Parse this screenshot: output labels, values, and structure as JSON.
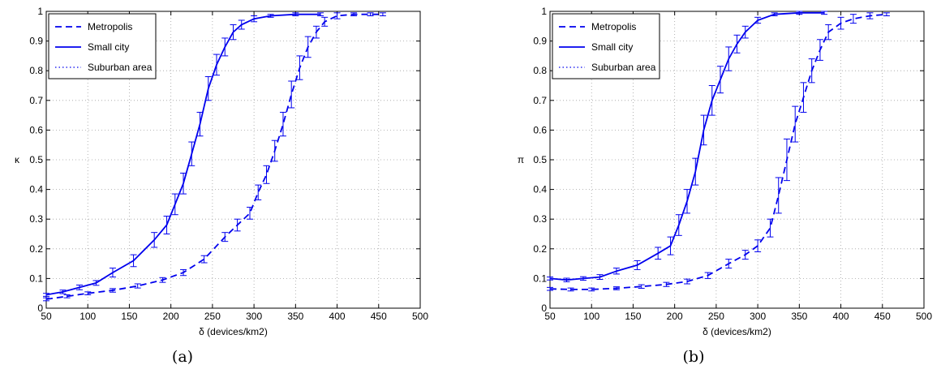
{
  "chart_data": [
    {
      "type": "line",
      "panel": "(a)",
      "xlabel": "δ (devices/km2)",
      "ylabel": "κ",
      "xlim": [
        50,
        500
      ],
      "ylim": [
        0,
        1
      ],
      "xticks": [
        50,
        100,
        150,
        200,
        250,
        300,
        350,
        400,
        450,
        500
      ],
      "yticks": [
        0,
        0.1,
        0.2,
        0.3,
        0.4,
        0.5,
        0.6,
        0.7,
        0.8,
        0.9,
        1
      ],
      "ytick_labels": [
        "0",
        "0.1",
        "0.2",
        "0.3",
        "0.4",
        "0.5",
        "0.6",
        "0.7",
        "0.8",
        "0.9",
        "1"
      ],
      "grid": true,
      "legend_position": "top-left",
      "series": [
        {
          "name": "Metropolis",
          "style": "dashed",
          "color": "#0000ee",
          "x": [
            50,
            75,
            100,
            130,
            160,
            190,
            215,
            240,
            265,
            280,
            295,
            305,
            315,
            325,
            335,
            345,
            355,
            365,
            375,
            385,
            400,
            420,
            440,
            455
          ],
          "y": [
            0.03,
            0.04,
            0.05,
            0.06,
            0.075,
            0.095,
            0.12,
            0.165,
            0.24,
            0.28,
            0.32,
            0.39,
            0.45,
            0.53,
            0.62,
            0.72,
            0.81,
            0.88,
            0.93,
            0.965,
            0.985,
            0.99,
            0.99,
            0.99
          ],
          "err": [
            0.005,
            0.005,
            0.005,
            0.006,
            0.007,
            0.008,
            0.01,
            0.012,
            0.015,
            0.02,
            0.02,
            0.025,
            0.03,
            0.035,
            0.04,
            0.045,
            0.04,
            0.035,
            0.02,
            0.015,
            0.01,
            0.005,
            0.005,
            0.005
          ]
        },
        {
          "name": "Small city",
          "style": "solid",
          "color": "#0000ee",
          "x": [
            50,
            70,
            90,
            110,
            130,
            155,
            180,
            195,
            205,
            215,
            225,
            235,
            245,
            255,
            265,
            275,
            285,
            300,
            320,
            350,
            380
          ],
          "y": [
            0.045,
            0.055,
            0.07,
            0.085,
            0.12,
            0.16,
            0.23,
            0.28,
            0.35,
            0.42,
            0.52,
            0.62,
            0.74,
            0.82,
            0.88,
            0.93,
            0.955,
            0.975,
            0.985,
            0.99,
            0.99
          ],
          "err": [
            0.005,
            0.006,
            0.008,
            0.008,
            0.015,
            0.02,
            0.025,
            0.03,
            0.035,
            0.035,
            0.04,
            0.04,
            0.04,
            0.035,
            0.03,
            0.025,
            0.015,
            0.01,
            0.005,
            0.005,
            0.005
          ]
        },
        {
          "name": "Suburban area",
          "style": "dotted",
          "color": "#0000ee",
          "x": [
            50,
            70,
            90,
            110,
            130,
            155,
            180,
            195,
            205,
            215,
            225,
            235,
            245,
            255,
            265,
            275,
            285,
            300,
            320,
            350,
            380
          ],
          "y": [
            0.045,
            0.055,
            0.07,
            0.085,
            0.12,
            0.16,
            0.23,
            0.28,
            0.35,
            0.42,
            0.52,
            0.62,
            0.74,
            0.82,
            0.88,
            0.93,
            0.955,
            0.975,
            0.985,
            0.99,
            0.99
          ]
        }
      ]
    },
    {
      "type": "line",
      "panel": "(b)",
      "xlabel": "δ (devices/km2)",
      "ylabel": "π",
      "xlim": [
        50,
        500
      ],
      "ylim": [
        0,
        1
      ],
      "xticks": [
        50,
        100,
        150,
        200,
        250,
        300,
        350,
        400,
        450,
        500
      ],
      "yticks": [
        0,
        0.1,
        0.2,
        0.3,
        0.4,
        0.5,
        0.6,
        0.7,
        0.8,
        0.9,
        1
      ],
      "ytick_labels": [
        "0",
        "0.1",
        "0.2",
        "0.3",
        "0.4",
        "0.5",
        "0.6",
        "0.7",
        "0.8",
        "0.9",
        "1"
      ],
      "grid": true,
      "legend_position": "top-left",
      "series": [
        {
          "name": "Metropolis",
          "style": "dashed",
          "color": "#0000ee",
          "x": [
            50,
            75,
            100,
            130,
            160,
            190,
            215,
            240,
            265,
            285,
            300,
            315,
            325,
            335,
            345,
            355,
            365,
            375,
            385,
            400,
            415,
            435,
            455
          ],
          "y": [
            0.065,
            0.063,
            0.063,
            0.067,
            0.073,
            0.08,
            0.09,
            0.11,
            0.15,
            0.18,
            0.21,
            0.27,
            0.38,
            0.5,
            0.62,
            0.71,
            0.8,
            0.87,
            0.93,
            0.96,
            0.975,
            0.985,
            0.99
          ],
          "err": [
            0.005,
            0.005,
            0.005,
            0.005,
            0.006,
            0.007,
            0.008,
            0.01,
            0.015,
            0.015,
            0.02,
            0.03,
            0.06,
            0.07,
            0.06,
            0.05,
            0.04,
            0.035,
            0.025,
            0.02,
            0.015,
            0.01,
            0.005
          ]
        },
        {
          "name": "Small city",
          "style": "solid",
          "color": "#0000ee",
          "x": [
            50,
            70,
            90,
            110,
            130,
            155,
            180,
            195,
            205,
            215,
            225,
            235,
            245,
            255,
            265,
            275,
            285,
            300,
            320,
            350,
            380
          ],
          "y": [
            0.1,
            0.095,
            0.1,
            0.105,
            0.125,
            0.145,
            0.185,
            0.21,
            0.28,
            0.36,
            0.46,
            0.6,
            0.7,
            0.77,
            0.84,
            0.89,
            0.93,
            0.97,
            0.99,
            0.995,
            0.995
          ],
          "err": [
            0.005,
            0.006,
            0.006,
            0.008,
            0.01,
            0.015,
            0.02,
            0.03,
            0.035,
            0.04,
            0.045,
            0.05,
            0.05,
            0.045,
            0.04,
            0.03,
            0.02,
            0.01,
            0.005,
            0.005,
            0.005
          ]
        },
        {
          "name": "Suburban area",
          "style": "dotted",
          "color": "#0000ee",
          "x": [
            50,
            70,
            90,
            110,
            130,
            155,
            180,
            195,
            205,
            215,
            225,
            235,
            245,
            255,
            265,
            275,
            285,
            300,
            320,
            350,
            380
          ],
          "y": [
            0.1,
            0.095,
            0.1,
            0.105,
            0.125,
            0.145,
            0.185,
            0.21,
            0.28,
            0.36,
            0.46,
            0.6,
            0.7,
            0.77,
            0.84,
            0.89,
            0.93,
            0.97,
            0.99,
            0.995,
            0.995
          ]
        }
      ]
    }
  ]
}
